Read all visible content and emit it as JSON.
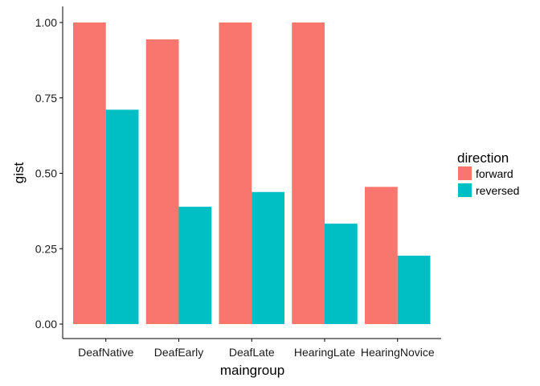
{
  "chart_data": {
    "type": "bar",
    "xlabel": "maingroup",
    "ylabel": "gist",
    "categories": [
      "DeafNative",
      "DeafEarly",
      "DeafLate",
      "HearingLate",
      "HearingNovice"
    ],
    "series": [
      {
        "name": "forward",
        "color": "#F8766D",
        "values": [
          1.0,
          0.944,
          1.0,
          1.0,
          0.455
        ]
      },
      {
        "name": "reversed",
        "color": "#00BFC4",
        "values": [
          0.711,
          0.389,
          0.438,
          0.333,
          0.227
        ]
      }
    ],
    "ylim": [
      0,
      1
    ],
    "yticks": [
      "0.00",
      "0.25",
      "0.50",
      "0.75",
      "1.00"
    ],
    "ytick_values": [
      0,
      0.25,
      0.5,
      0.75,
      1.0
    ],
    "legend": {
      "title": "direction",
      "position": "right"
    },
    "grid": false
  }
}
